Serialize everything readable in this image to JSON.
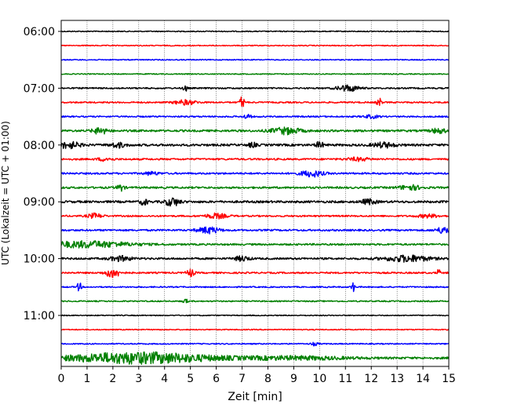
{
  "chart_data": {
    "type": "line",
    "title": "",
    "xlabel": "Zeit  [min]",
    "ylabel": "UTC (Lokalzeit = UTC + 01:00)",
    "xlim": [
      0,
      15
    ],
    "x_ticks": [
      0,
      1,
      2,
      3,
      4,
      5,
      6,
      7,
      8,
      9,
      10,
      11,
      12,
      13,
      14,
      15
    ],
    "grid": "vertical-dotted",
    "y_ticks": [
      {
        "label": "06:00",
        "trace": 0
      },
      {
        "label": "07:00",
        "trace": 4
      },
      {
        "label": "08:00",
        "trace": 8
      },
      {
        "label": "09:00",
        "trace": 12
      },
      {
        "label": "10:00",
        "trace": 16
      },
      {
        "label": "11:00",
        "trace": 20
      }
    ],
    "trace_colors": [
      "#000000",
      "#ff0000",
      "#0000ff",
      "#008000"
    ],
    "traces": [
      {
        "color_index": 0,
        "noise": 0.6,
        "events": []
      },
      {
        "color_index": 1,
        "noise": 0.6,
        "events": []
      },
      {
        "color_index": 2,
        "noise": 0.6,
        "events": []
      },
      {
        "color_index": 3,
        "noise": 0.6,
        "events": []
      },
      {
        "color_index": 0,
        "noise": 0.9,
        "events": [
          {
            "t": 4.8,
            "w": 0.05,
            "a": 5
          },
          {
            "t": 11.1,
            "w": 0.3,
            "a": 4
          }
        ]
      },
      {
        "color_index": 1,
        "noise": 0.9,
        "events": [
          {
            "t": 4.8,
            "w": 0.3,
            "a": 3
          },
          {
            "t": 7.0,
            "w": 0.06,
            "a": 8
          },
          {
            "t": 12.3,
            "w": 0.06,
            "a": 6
          }
        ]
      },
      {
        "color_index": 2,
        "noise": 0.9,
        "events": [
          {
            "t": 7.2,
            "w": 0.1,
            "a": 3
          },
          {
            "t": 12.0,
            "w": 0.2,
            "a": 2
          }
        ]
      },
      {
        "color_index": 3,
        "noise": 1.3,
        "events": [
          {
            "t": 1.5,
            "w": 0.2,
            "a": 4
          },
          {
            "t": 8.7,
            "w": 0.4,
            "a": 4
          },
          {
            "t": 14.6,
            "w": 0.2,
            "a": 3
          }
        ]
      },
      {
        "color_index": 0,
        "noise": 1.4,
        "events": [
          {
            "t": 0.3,
            "w": 0.3,
            "a": 4
          },
          {
            "t": 2.2,
            "w": 0.2,
            "a": 3
          },
          {
            "t": 7.4,
            "w": 0.1,
            "a": 3
          },
          {
            "t": 10.0,
            "w": 0.1,
            "a": 4
          },
          {
            "t": 12.5,
            "w": 0.3,
            "a": 3
          }
        ]
      },
      {
        "color_index": 1,
        "noise": 1.1,
        "events": [
          {
            "t": 1.7,
            "w": 0.2,
            "a": 2
          },
          {
            "t": 11.5,
            "w": 0.3,
            "a": 2
          }
        ]
      },
      {
        "color_index": 2,
        "noise": 1.1,
        "events": [
          {
            "t": 9.7,
            "w": 0.3,
            "a": 4
          },
          {
            "t": 3.5,
            "w": 0.2,
            "a": 2
          }
        ]
      },
      {
        "color_index": 3,
        "noise": 1.2,
        "events": [
          {
            "t": 2.3,
            "w": 0.1,
            "a": 4
          },
          {
            "t": 13.5,
            "w": 0.3,
            "a": 3
          }
        ]
      },
      {
        "color_index": 0,
        "noise": 1.4,
        "events": [
          {
            "t": 3.2,
            "w": 0.1,
            "a": 4
          },
          {
            "t": 4.3,
            "w": 0.2,
            "a": 5
          },
          {
            "t": 11.9,
            "w": 0.2,
            "a": 3
          }
        ]
      },
      {
        "color_index": 1,
        "noise": 1.0,
        "events": [
          {
            "t": 1.3,
            "w": 0.2,
            "a": 3
          },
          {
            "t": 6.0,
            "w": 0.3,
            "a": 3
          },
          {
            "t": 14.2,
            "w": 0.3,
            "a": 2
          }
        ]
      },
      {
        "color_index": 2,
        "noise": 1.1,
        "events": [
          {
            "t": 5.7,
            "w": 0.3,
            "a": 4
          },
          {
            "t": 14.8,
            "w": 0.2,
            "a": 4
          }
        ]
      },
      {
        "color_index": 3,
        "noise": 1.1,
        "events": [
          {
            "t": 1.0,
            "w": 1.2,
            "a": 4
          }
        ]
      },
      {
        "color_index": 0,
        "noise": 1.2,
        "events": [
          {
            "t": 2.3,
            "w": 0.3,
            "a": 3
          },
          {
            "t": 7.0,
            "w": 0.2,
            "a": 3
          },
          {
            "t": 13.4,
            "w": 0.6,
            "a": 4
          }
        ]
      },
      {
        "color_index": 1,
        "noise": 1.0,
        "events": [
          {
            "t": 2.0,
            "w": 0.2,
            "a": 6
          },
          {
            "t": 5.0,
            "w": 0.1,
            "a": 5
          },
          {
            "t": 14.6,
            "w": 0.05,
            "a": 4
          }
        ]
      },
      {
        "color_index": 2,
        "noise": 0.8,
        "events": [
          {
            "t": 0.7,
            "w": 0.05,
            "a": 7
          },
          {
            "t": 11.3,
            "w": 0.05,
            "a": 6
          }
        ]
      },
      {
        "color_index": 3,
        "noise": 0.8,
        "events": [
          {
            "t": 4.8,
            "w": 0.05,
            "a": 4
          }
        ]
      },
      {
        "color_index": 0,
        "noise": 0.6,
        "events": []
      },
      {
        "color_index": 1,
        "noise": 0.6,
        "events": []
      },
      {
        "color_index": 2,
        "noise": 0.7,
        "events": [
          {
            "t": 9.8,
            "w": 0.1,
            "a": 2
          }
        ]
      },
      {
        "color_index": 3,
        "noise": 1.3,
        "events": [
          {
            "t": 3.0,
            "w": 2.0,
            "a": 7
          },
          {
            "t": 9.0,
            "w": 1.5,
            "a": 2
          }
        ]
      }
    ]
  }
}
